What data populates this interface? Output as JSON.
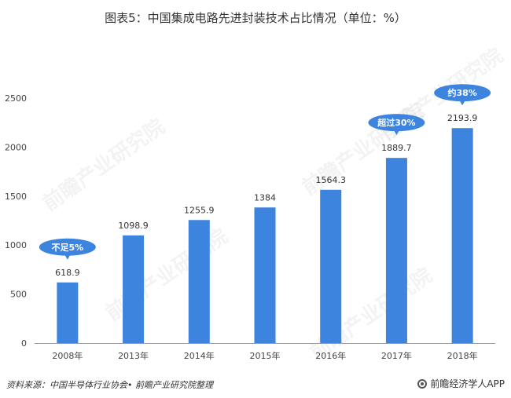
{
  "title": "图表5：中国集成电路先进封装技术占比情况（单位：%）",
  "watermark_text": "前瞻产业研究院",
  "footer": {
    "source": "资料来源：中国半导体行业协会• 前瞻产业研究院整理",
    "brand": "前瞻经济学人APP",
    "brand_icon": "qianzhan-logo-icon"
  },
  "colors": {
    "bar": "#3d84df",
    "bubble": "#3d84df",
    "axis": "#999999"
  },
  "chart_data": {
    "type": "bar",
    "categories": [
      "2008年",
      "2013年",
      "2014年",
      "2015年",
      "2016年",
      "2017年",
      "2018年"
    ],
    "values": [
      618.9,
      1098.9,
      1255.9,
      1384,
      1564.3,
      1889.7,
      2193.9
    ],
    "value_labels": [
      "618.9",
      "1098.9",
      "1255.9",
      "1384",
      "1564.3",
      "1889.7",
      "2193.9"
    ],
    "yticks": [
      0,
      500,
      1000,
      1500,
      2000,
      2500
    ],
    "ylim": [
      0,
      2500
    ],
    "annotations": [
      {
        "category_index": 0,
        "text": "不足5%"
      },
      {
        "category_index": 5,
        "text": "超过30%"
      },
      {
        "category_index": 6,
        "text": "约38%"
      }
    ]
  }
}
